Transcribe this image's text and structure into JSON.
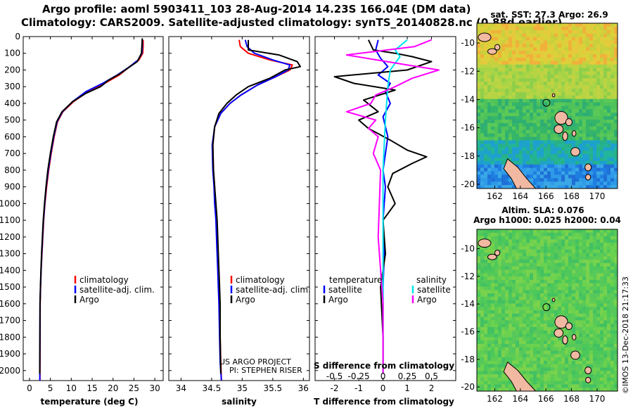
{
  "header": {
    "title_line1": "Argo profile: aoml 5903411_103 28-Aug-2014 14.23S 166.04E (DM data)",
    "title_line2": "Climatology: CARS2009. Satellite-adjusted climatology: synTS_20140828.nc (0.88d earlier)"
  },
  "colors": {
    "climatology": "#ff0000",
    "satellite": "#0000ff",
    "argo": "#000000",
    "sal_satellite": "#00e5ee",
    "sal_argo": "#ff00ff"
  },
  "depth_ticks": [
    0,
    100,
    200,
    300,
    400,
    500,
    600,
    700,
    800,
    900,
    1000,
    1100,
    1200,
    1300,
    1400,
    1500,
    1600,
    1700,
    1800,
    1900,
    2000
  ],
  "chart_data": [
    {
      "type": "line",
      "xlabel": "temperature (deg C)",
      "ylabel": "",
      "xticks": [
        0,
        5,
        10,
        15,
        20,
        25,
        30
      ],
      "xlim": [
        -1.5,
        32
      ],
      "ylim": [
        2060,
        0
      ],
      "legend": {
        "items": [
          "climatology",
          "satellite-adj. clim.",
          "Argo"
        ]
      },
      "series": [
        {
          "name": "climatology",
          "color": "#ff0000",
          "x": [
            27.2,
            27.2,
            27.1,
            26.2,
            24.0,
            21.5,
            18.0,
            14.0,
            10.5,
            8.0,
            6.7,
            5.9,
            5.2,
            4.6,
            4.1,
            3.7,
            3.4,
            3.2,
            3.0,
            2.8,
            2.65,
            2.55,
            2.5
          ],
          "y": [
            20,
            60,
            100,
            140,
            180,
            230,
            280,
            330,
            390,
            450,
            510,
            600,
            700,
            800,
            900,
            1000,
            1100,
            1200,
            1300,
            1400,
            1500,
            1600,
            2060
          ]
        },
        {
          "name": "satellite-adj. clim.",
          "color": "#0000ff",
          "x": [
            27.0,
            27.0,
            26.9,
            26.0,
            24.0,
            21.0,
            17.5,
            13.5,
            10.3,
            7.9,
            6.6,
            5.8,
            5.1,
            4.5,
            4.0,
            3.65,
            3.35,
            3.15,
            2.95,
            2.78,
            2.64,
            2.53,
            2.47
          ],
          "y": [
            20,
            60,
            100,
            140,
            180,
            230,
            280,
            330,
            390,
            450,
            510,
            600,
            700,
            800,
            900,
            1000,
            1100,
            1200,
            1300,
            1400,
            1500,
            1600,
            2060
          ]
        },
        {
          "name": "Argo",
          "color": "#000000",
          "x": [
            27.0,
            26.9,
            26.8,
            25.8,
            23.5,
            21.8,
            19.0,
            17.0,
            13.5,
            10.3,
            7.8,
            6.5,
            5.7,
            5.0,
            4.4,
            3.95,
            3.6,
            3.3,
            3.1,
            2.9,
            2.75,
            2.62,
            2.52,
            2.45
          ],
          "y": [
            10,
            60,
            100,
            150,
            190,
            220,
            260,
            300,
            340,
            390,
            450,
            510,
            600,
            700,
            800,
            900,
            1000,
            1100,
            1200,
            1300,
            1400,
            1500,
            1600,
            2020
          ]
        }
      ]
    },
    {
      "type": "line",
      "xlabel": "salinity",
      "ylabel": "",
      "xticks": [
        34,
        34.5,
        35,
        35.5,
        36
      ],
      "xlim": [
        33.8,
        36.1
      ],
      "ylim": [
        2060,
        0
      ],
      "legend": {
        "items": [
          "climatology",
          "satellite-adj. clim.",
          "Argo"
        ]
      },
      "series": [
        {
          "name": "climatology",
          "color": "#ff0000",
          "x": [
            34.95,
            34.97,
            35.1,
            35.45,
            35.82,
            35.78,
            35.55,
            35.25,
            34.98,
            34.8,
            34.65,
            34.55,
            34.52,
            34.53,
            34.55,
            34.56,
            34.58,
            34.59,
            34.6,
            34.61,
            34.62,
            34.63,
            34.64,
            34.65,
            34.66
          ],
          "y": [
            20,
            60,
            100,
            140,
            170,
            200,
            240,
            290,
            350,
            400,
            460,
            540,
            650,
            800,
            900,
            1000,
            1100,
            1200,
            1300,
            1400,
            1500,
            1600,
            1800,
            1950,
            2060
          ]
        },
        {
          "name": "satellite-adj. clim.",
          "color": "#0000ff",
          "x": [
            35.05,
            35.08,
            35.2,
            35.5,
            35.78,
            35.75,
            35.55,
            35.25,
            34.98,
            34.8,
            34.65,
            34.55,
            34.51,
            34.52,
            34.54,
            34.55,
            34.57,
            34.58,
            34.59,
            34.6,
            34.61,
            34.62,
            34.63,
            34.64,
            34.66
          ],
          "y": [
            20,
            60,
            100,
            140,
            170,
            200,
            240,
            290,
            350,
            400,
            460,
            540,
            650,
            800,
            900,
            1000,
            1100,
            1200,
            1300,
            1400,
            1500,
            1600,
            1800,
            1950,
            2060
          ]
        },
        {
          "name": "Argo",
          "color": "#000000",
          "x": [
            35.1,
            35.1,
            35.6,
            35.9,
            35.95,
            35.7,
            35.45,
            35.1,
            34.9,
            34.75,
            34.62,
            34.55,
            34.52,
            34.53,
            34.55,
            34.57,
            34.59,
            34.6,
            34.61,
            34.62,
            34.63,
            34.64,
            34.64,
            34.65
          ],
          "y": [
            20,
            80,
            110,
            150,
            180,
            200,
            250,
            300,
            350,
            400,
            460,
            540,
            650,
            800,
            900,
            1000,
            1100,
            1200,
            1300,
            1400,
            1500,
            1600,
            1800,
            2020
          ]
        }
      ]
    },
    {
      "type": "line",
      "xlabel": "T difference from climatology",
      "xlabel_top": "S difference from climatology",
      "ylabel": "",
      "xticks": [
        -2,
        -1,
        0,
        1,
        2
      ],
      "xticks_top": [
        "-0.5",
        "-0.25",
        "0",
        "0.25",
        "0.5"
      ],
      "xlim": [
        -2.8,
        3.0
      ],
      "ylim": [
        2060,
        0
      ],
      "legend": {
        "left_title": "temperature",
        "right_title": "salinity",
        "left_items": [
          "satellite",
          "Argo"
        ],
        "right_items": [
          "satellite",
          "Argo"
        ]
      },
      "series": [
        {
          "name": "T satellite",
          "color": "#0000ff",
          "x": [
            -0.2,
            -0.3,
            -0.1,
            0.2,
            -0.2,
            0.3,
            0.1,
            0.3,
            0.0,
            0.2,
            0.1,
            0.0,
            0.1,
            0.0,
            0.05,
            0.0,
            0.0,
            0.0
          ],
          "y": [
            20,
            80,
            130,
            180,
            230,
            280,
            330,
            400,
            480,
            600,
            700,
            800,
            900,
            1100,
            1300,
            1500,
            1800,
            2020
          ]
        },
        {
          "name": "T Argo",
          "color": "#000000",
          "x": [
            -0.6,
            -0.4,
            0.5,
            1.2,
            2.0,
            1.0,
            -2.0,
            -1.2,
            0.5,
            -0.8,
            -0.2,
            -1.0,
            -0.6,
            0.3,
            1.0,
            1.8,
            1.2,
            0.4,
            0.2,
            0.5,
            0.0,
            0.1,
            -0.1,
            0.0,
            0.0
          ],
          "y": [
            20,
            80,
            100,
            120,
            150,
            200,
            240,
            280,
            320,
            380,
            450,
            500,
            550,
            620,
            680,
            720,
            760,
            820,
            900,
            1000,
            1100,
            1300,
            1500,
            1800,
            2020
          ]
        },
        {
          "name": "S satellite",
          "color": "#00e5ee",
          "x": [
            1.0,
            0.5,
            0.7,
            0.3,
            0.2,
            0.1,
            0.0,
            0.0,
            0.0
          ],
          "y": [
            20,
            80,
            120,
            200,
            300,
            500,
            800,
            1200,
            2020
          ]
        },
        {
          "name": "S Argo",
          "color": "#ff00ff",
          "x": [
            2.0,
            1.3,
            -1.5,
            1.0,
            2.3,
            1.2,
            0.5,
            -0.3,
            -0.5,
            -1.5,
            -0.3,
            -0.6,
            -0.2,
            -0.4,
            -0.1,
            -0.2,
            0.0,
            0.0
          ],
          "y": [
            20,
            60,
            110,
            170,
            200,
            250,
            300,
            350,
            400,
            450,
            500,
            550,
            600,
            700,
            800,
            1200,
            1600,
            2020
          ]
        }
      ]
    },
    {
      "type": "heatmap",
      "title": "sat. SST: 27.3 Argo: 26.9",
      "xticks": [
        162,
        164,
        166,
        168,
        170
      ],
      "yticks": [
        -10,
        -12,
        -14,
        -16,
        -18,
        -20
      ],
      "xlim": [
        160.6,
        171.6
      ],
      "ylim": [
        -20.3,
        -8.6
      ],
      "argo_position": {
        "lon": 166.04,
        "lat": -14.23
      }
    },
    {
      "type": "heatmap",
      "title": "Altim. SLA: 0.076",
      "subtitle": "Argo h1000: 0.025 h2000: 0.04",
      "xticks": [
        162,
        164,
        166,
        168,
        170
      ],
      "yticks": [
        -10,
        -12,
        -14,
        -16,
        -18,
        -20
      ],
      "xlim": [
        160.6,
        171.6
      ],
      "ylim": [
        -20.3,
        -8.6
      ],
      "argo_position": {
        "lon": 166.04,
        "lat": -14.23
      }
    }
  ],
  "credits": {
    "line1": "US ARGO PROJECT",
    "line2": "PI: STEPHEN RISER",
    "imos": "©IMOS 13-Dec-2018 21:17:33"
  }
}
